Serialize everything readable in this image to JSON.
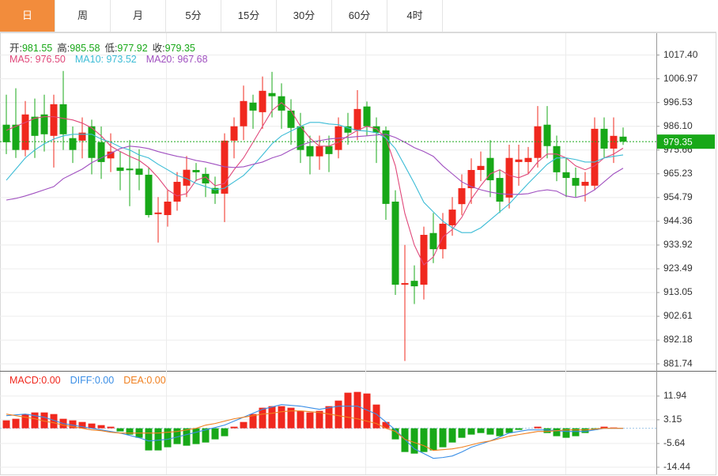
{
  "tabs": [
    "日",
    "周",
    "月",
    "5分",
    "15分",
    "30分",
    "60分",
    "4时"
  ],
  "selected_tab": 0,
  "ohlc_info": [
    {
      "label": "开:",
      "value": "981.55"
    },
    {
      "label": "高:",
      "value": "985.58"
    },
    {
      "label": "低:",
      "value": "977.92"
    },
    {
      "label": "收:",
      "value": "979.35"
    }
  ],
  "chart_data": [
    {
      "type": "candlestick",
      "up_color": "#f0281e",
      "down_color": "#18a818",
      "open": [
        986.8,
        986.8,
        975.7,
        990.3,
        991.3,
        981.9,
        995.8,
        980.9,
        979.8,
        986.1,
        979.1,
        972,
        968,
        967.5,
        967.5,
        964.8,
        947.5,
        947.1,
        953,
        960,
        966.9,
        965.2,
        959,
        956.5,
        979.8,
        986.1,
        996.5,
        992.3,
        1000.7,
        999.3,
        993,
        986.1,
        977.4,
        972.9,
        977.4,
        975.7,
        986.1,
        984.3,
        994.8,
        986.1,
        984.3,
        953,
        916.5,
        918.2,
        916.5,
        939.2,
        932.1,
        942.6,
        951.9,
        958.9,
        966.9,
        972.2,
        963.4,
        954.8,
        970.4,
        970.4,
        972.2,
        986.8,
        977.4,
        965.9,
        963.4,
        960,
        960,
        985,
        976.3,
        981.55
      ],
      "high": [
        1000,
        1002.8,
        997.2,
        998.3,
        1000,
        1000,
        1010.4,
        986,
        990,
        989,
        986,
        983,
        975,
        980,
        976,
        968,
        955,
        958,
        966,
        973,
        970,
        968,
        964,
        983,
        990,
        1004,
        1000,
        1008,
        1010,
        1005,
        998,
        992,
        982,
        982,
        982,
        990,
        992,
        1002,
        997,
        990,
        986,
        958,
        934,
        925,
        942,
        948,
        948,
        955,
        965,
        972,
        975,
        980,
        967,
        978,
        978,
        977,
        995,
        995,
        982,
        972,
        968,
        966,
        990,
        990,
        990,
        985.58
      ],
      "low": [
        973.9,
        972.2,
        972.9,
        972.2,
        975,
        968,
        975.7,
        970,
        972,
        965,
        963,
        966,
        958,
        951,
        958,
        946,
        935,
        942,
        949,
        955,
        962,
        955,
        952,
        944,
        972,
        980,
        985,
        985,
        990,
        985,
        978,
        970,
        965,
        967,
        966,
        972,
        978,
        980,
        982,
        970,
        945,
        912,
        883,
        908,
        910,
        926,
        928,
        938,
        947,
        952,
        962,
        955,
        948,
        950,
        960,
        965,
        968,
        972,
        962,
        955,
        955,
        953,
        958,
        972,
        970,
        977.92
      ],
      "close": [
        979.1,
        975.7,
        991.3,
        981.9,
        982.6,
        995.8,
        982.6,
        975.7,
        983.3,
        972.2,
        970.4,
        975,
        966.5,
        966.8,
        964.8,
        947.1,
        948.2,
        953,
        961.7,
        967,
        965.9,
        961,
        956.5,
        979.8,
        986.1,
        997.2,
        993,
        1001.7,
        999.3,
        993,
        985.4,
        975.7,
        972.9,
        977.4,
        973.9,
        986.1,
        983.3,
        993.7,
        986.1,
        983.3,
        952,
        916.5,
        917.2,
        915.8,
        938.4,
        932.1,
        943.3,
        949.5,
        958.9,
        966.9,
        968.7,
        962.4,
        953,
        972.2,
        971.5,
        972.2,
        986.1,
        977.4,
        965.9,
        963.4,
        960,
        961.7,
        985,
        976.3,
        981.9,
        979.35
      ],
      "series": [
        {
          "name": "MA5: 976.50",
          "color": "#e0487a",
          "values": [
            984.3,
            986.1,
            987.8,
            989.6,
            990.3,
            990.3,
            989.6,
            988.9,
            987.5,
            985.4,
            981.9,
            977.4,
            975.0,
            972.9,
            971.1,
            968.0,
            963.5,
            958.2,
            955.5,
            956.5,
            962.4,
            963.8,
            960.0,
            961.0,
            967.0,
            972.2,
            979.1,
            986.1,
            993.0,
            996.5,
            993.0,
            986.1,
            980.9,
            977.4,
            977.4,
            979.1,
            981.9,
            984.3,
            986.1,
            985.0,
            980.9,
            968.7,
            947.8,
            933.9,
            925.2,
            928.7,
            937.4,
            940.8,
            946.1,
            954.1,
            960.0,
            965.2,
            967.0,
            964.5,
            963.5,
            965.2,
            970.4,
            973.9,
            973.9,
            972.2,
            968.7,
            967.0,
            968.7,
            972.2,
            973.9,
            976.5
          ]
        },
        {
          "name": "MA10: 973.52",
          "color": "#3cbcd6",
          "values": [
            962.4,
            967.3,
            972.2,
            975.7,
            978.4,
            980.5,
            981.9,
            982.6,
            982.6,
            982.6,
            980.5,
            979.1,
            977.0,
            975.7,
            973.5,
            972.2,
            969.4,
            967.0,
            964.5,
            963.1,
            961.0,
            959.6,
            958.2,
            958.9,
            961.7,
            964.5,
            968.7,
            973.5,
            978.4,
            981.9,
            984.0,
            986.1,
            987.8,
            987.8,
            987.1,
            986.8,
            985.4,
            984.3,
            984.0,
            983.3,
            980.9,
            976.3,
            968.7,
            961.0,
            952.7,
            948.5,
            944.4,
            941.5,
            939.4,
            939.4,
            941.5,
            945.0,
            948.5,
            952.0,
            956.5,
            961.0,
            965.2,
            969.4,
            972.2,
            972.2,
            971.5,
            970.4,
            970.4,
            972.2,
            972.9,
            973.52
          ]
        },
        {
          "name": "MA20: 967.68",
          "color": "#a050c0",
          "values": [
            953.7,
            954.4,
            955.5,
            956.8,
            958.2,
            959.6,
            963.1,
            965.2,
            967.3,
            970.1,
            972.2,
            974.2,
            976.3,
            977.4,
            977.0,
            976.3,
            975.0,
            973.9,
            972.9,
            972.2,
            971.1,
            970.4,
            969.4,
            968.3,
            968.0,
            968.3,
            969.4,
            970.4,
            972.2,
            973.5,
            975.7,
            977.7,
            979.1,
            979.8,
            980.5,
            980.9,
            981.2,
            981.6,
            981.9,
            982.3,
            982.6,
            981.2,
            979.1,
            976.7,
            975.0,
            972.9,
            968.7,
            965.2,
            961.7,
            959.6,
            958.2,
            957.2,
            956.5,
            956.2,
            956.2,
            956.5,
            957.6,
            958.2,
            957.6,
            955.5,
            954.8,
            955.8,
            958.2,
            961.7,
            965.2,
            967.68
          ]
        }
      ],
      "last_price": 979.35,
      "ylim": [
        879,
        1027
      ],
      "yticks": [
        {
          "value": 1017.4,
          "label": "1017.40"
        },
        1006.97,
        996.53,
        {
          "value": 986.1,
          "label": "986.10"
        },
        975.66,
        965.23,
        954.79,
        944.36,
        933.92,
        923.49,
        913.05,
        902.61,
        892.18,
        881.74
      ],
      "grid": true
    },
    {
      "type": "macd",
      "series": [
        {
          "name": "MACD:0.00",
          "color": "#f0281e",
          "neg_color": "#18a818",
          "kind": "bar",
          "values": [
            2.93,
            3.52,
            5.27,
            5.86,
            5.86,
            5.27,
            3.52,
            2.93,
            2.34,
            1.76,
            1.17,
            0.59,
            -1.17,
            -2.34,
            -3.52,
            -8.2,
            -8.2,
            -7.03,
            -5.86,
            -6.45,
            -5.86,
            -5.27,
            -4.1,
            -2.93,
            0.59,
            2.34,
            5.27,
            7.62,
            8.2,
            8.2,
            7.62,
            6.45,
            5.86,
            6.45,
            8.2,
            10.26,
            13.19,
            13.48,
            12.89,
            8.79,
            2.34,
            -4.1,
            -8.79,
            -9.38,
            -8.79,
            -8.2,
            -7.03,
            -5.27,
            -3.52,
            -2.34,
            -1.76,
            -2.34,
            -2.93,
            -1.76,
            -0.59,
            0,
            0.59,
            -1.76,
            -2.93,
            -3.52,
            -2.93,
            -1.76,
            -0.59,
            0.59,
            0.29,
            0
          ]
        },
        {
          "name": "DIFF:0.00",
          "color": "#3a8ee6",
          "kind": "line",
          "values": [
            4.69,
            4.98,
            5.27,
            4.69,
            4.1,
            2.93,
            1.76,
            1.17,
            0.59,
            0,
            -0.59,
            -1.17,
            -1.76,
            -2.64,
            -3.52,
            -4.69,
            -4.4,
            -4.1,
            -3.22,
            -2.34,
            -1.47,
            -0.59,
            0.29,
            1.17,
            2.64,
            4.1,
            5.57,
            7.03,
            7.91,
            8.79,
            8.5,
            8.2,
            7.62,
            7.03,
            7.62,
            8.2,
            8.2,
            8.2,
            6.74,
            5.27,
            2.34,
            -0.59,
            -4.1,
            -7.62,
            -9.38,
            -11.13,
            -10.84,
            -10.26,
            -8.79,
            -7.03,
            -5.86,
            -4.69,
            -3.22,
            -1.76,
            -1.17,
            -0.59,
            -0.59,
            -0.59,
            -0.88,
            -1.17,
            -1.17,
            -1.17,
            -0.59,
            0,
            0,
            0
          ]
        },
        {
          "name": "DEA:0.00",
          "color": "#f08020",
          "kind": "line",
          "values": [
            5.27,
            4.69,
            4.1,
            3.52,
            2.64,
            2.05,
            1.17,
            0.59,
            0,
            -0.59,
            -0.88,
            -1.47,
            -1.76,
            -1.76,
            -1.76,
            -1.76,
            -1.76,
            -1.47,
            -1.17,
            -0.59,
            0,
            1.17,
            1.76,
            2.64,
            3.52,
            4.1,
            4.69,
            5.27,
            5.57,
            6.15,
            6.45,
            6.45,
            6.15,
            5.86,
            5.27,
            4.69,
            4.1,
            3.52,
            2.64,
            1.76,
            0,
            -1.17,
            -4.1,
            -5.27,
            -6.45,
            -8.2,
            -7.91,
            -7.62,
            -7.03,
            -6.15,
            -5.27,
            -4.69,
            -3.81,
            -2.93,
            -2.34,
            -1.76,
            -1.17,
            -1.17,
            -0.88,
            -0.59,
            -0.59,
            -0.59,
            -0.29,
            0,
            0,
            0
          ]
        }
      ],
      "ylim": [
        -17.1,
        21.0
      ],
      "yticks": [
        11.94,
        3.15,
        -5.64,
        -14.44
      ],
      "grid": true
    }
  ]
}
